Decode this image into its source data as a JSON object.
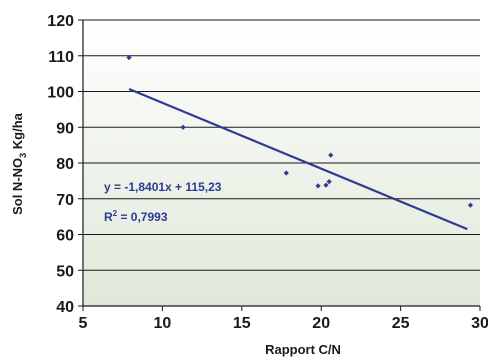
{
  "chart_data": {
    "type": "scatter",
    "xlabel": "Rapport C/N",
    "ylabel_main": "Sol N-NO",
    "ylabel_sub": "3",
    "ylabel_unit": " Kg/ha",
    "xlim": [
      5,
      30
    ],
    "ylim": [
      40,
      120
    ],
    "x_ticks": [
      "5",
      "10",
      "15",
      "20",
      "25",
      "30"
    ],
    "y_ticks": [
      "40",
      "50",
      "60",
      "70",
      "80",
      "90",
      "100",
      "110",
      "120"
    ],
    "grid": "horizontal",
    "series": [
      {
        "points": [
          {
            "x": 7.9,
            "y": 109.5
          },
          {
            "x": 11.3,
            "y": 90
          },
          {
            "x": 17.8,
            "y": 77.2
          },
          {
            "x": 19.8,
            "y": 73.6
          },
          {
            "x": 20.3,
            "y": 73.8
          },
          {
            "x": 20.5,
            "y": 74.8
          },
          {
            "x": 20.6,
            "y": 82.2
          },
          {
            "x": 29.4,
            "y": 68.2
          }
        ],
        "color": "#2e3a93"
      }
    ],
    "trendline": {
      "slope": -1.8401,
      "intercept": 115.23,
      "x_range": [
        7.9,
        29.2
      ],
      "color": "#2e3a93"
    },
    "annotations": {
      "equation": "y = -1,8401x + 115,23",
      "r2_prefix": "R",
      "r2_sup": "2",
      "r2_rest": " = 0,7993"
    },
    "plot_background": [
      "#ffffff",
      "#dfe8d8"
    ]
  }
}
